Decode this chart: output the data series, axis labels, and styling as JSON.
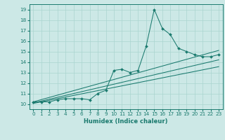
{
  "xlabel": "Humidex (Indice chaleur)",
  "bg_color": "#cce8e6",
  "line_color": "#1a7a6e",
  "grid_color": "#aad4d0",
  "xlim": [
    -0.5,
    23.5
  ],
  "ylim": [
    9.5,
    19.5
  ],
  "xticks": [
    0,
    1,
    2,
    3,
    4,
    5,
    6,
    7,
    8,
    9,
    10,
    11,
    12,
    13,
    14,
    15,
    16,
    17,
    18,
    19,
    20,
    21,
    22,
    23
  ],
  "yticks": [
    10,
    11,
    12,
    13,
    14,
    15,
    16,
    17,
    18,
    19
  ],
  "series": [
    {
      "x": [
        0,
        1,
        2,
        3,
        4,
        5,
        6,
        7,
        8,
        9,
        10,
        11,
        12,
        13,
        14,
        15,
        16,
        17,
        18,
        19,
        20,
        21,
        22,
        23
      ],
      "y": [
        10.2,
        10.2,
        10.2,
        10.4,
        10.5,
        10.5,
        10.5,
        10.4,
        11.0,
        11.3,
        13.2,
        13.3,
        13.0,
        13.2,
        15.5,
        19.0,
        17.2,
        16.6,
        15.3,
        15.0,
        14.7,
        14.5,
        14.5,
        14.7
      ]
    },
    {
      "x": [
        0,
        23
      ],
      "y": [
        10.05,
        13.55
      ]
    },
    {
      "x": [
        0,
        23
      ],
      "y": [
        10.1,
        14.2
      ]
    },
    {
      "x": [
        0,
        23
      ],
      "y": [
        10.2,
        15.1
      ]
    }
  ]
}
